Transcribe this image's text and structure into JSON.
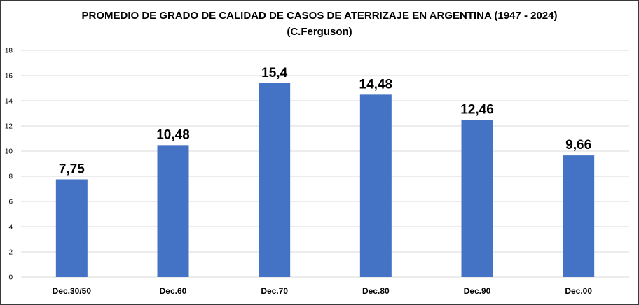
{
  "chart_data": {
    "type": "bar",
    "title": "PROMEDIO DE GRADO DE CALIDAD DE CASOS DE ATERRIZAJE EN ARGENTINA (1947 - 2024)",
    "subtitle": "(C.Ferguson)",
    "categories": [
      "Dec.30/50",
      "Dec.60",
      "Dec.70",
      "Dec.80",
      "Dec.90",
      "Dec.00"
    ],
    "values": [
      7.75,
      10.48,
      15.4,
      14.48,
      12.46,
      9.66
    ],
    "data_labels": [
      "7,75",
      "10,48",
      "15,4",
      "14,48",
      "12,46",
      "9,66"
    ],
    "ylim": [
      0,
      18
    ],
    "yticks": [
      0,
      2,
      4,
      6,
      8,
      10,
      12,
      14,
      16,
      18
    ],
    "grid": true,
    "legend": "none",
    "bar_color": "#4472C4",
    "grid_color": "#d9d9d9"
  }
}
